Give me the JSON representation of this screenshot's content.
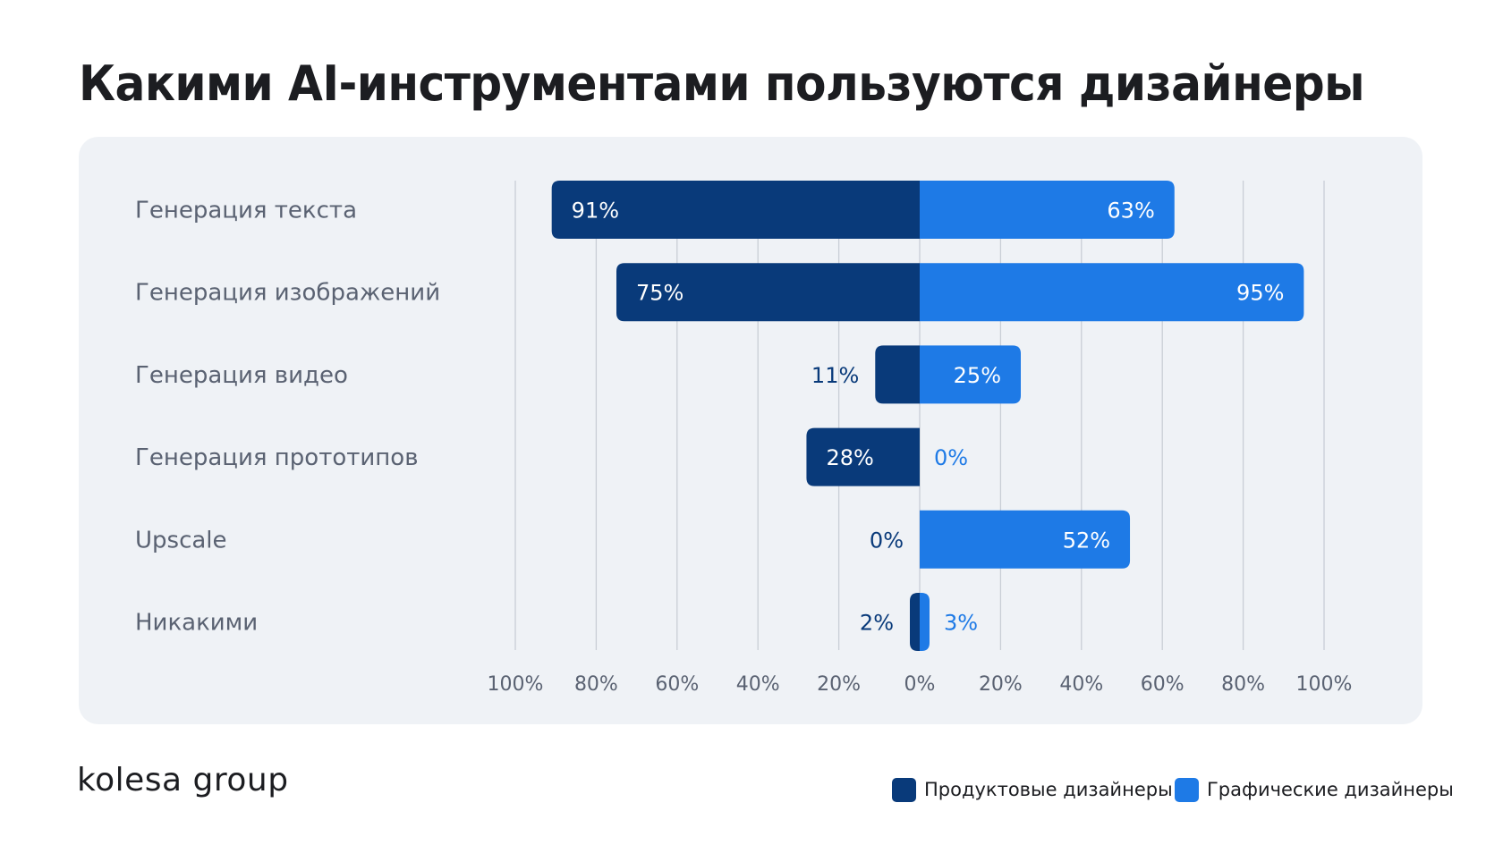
{
  "page": {
    "title": "Какими AI-инструментами пользуются дизайнеры",
    "logo_text": "kolesa group"
  },
  "colors": {
    "product": "#093a7a",
    "graphic": "#1e7ae6",
    "panel_bg": "#eff2f6",
    "category_label": "#5a6272",
    "tick_label": "#5a6272",
    "grid": "#c9ced6"
  },
  "chart_data": {
    "type": "bar",
    "orientation": "horizontal-diverging",
    "title": "Какими AI-инструментами пользуются дизайнеры",
    "categories": [
      "Генерация текста",
      "Генерация изображений",
      "Генерация видео",
      "Генерация прототипов",
      "Upscale",
      "Никакими"
    ],
    "series": [
      {
        "name": "Продуктовые дизайнеры",
        "direction": "left",
        "values": [
          91,
          75,
          11,
          28,
          0,
          2
        ],
        "labels": [
          "91%",
          "75%",
          "11%",
          "28%",
          "0%",
          "2%"
        ]
      },
      {
        "name": "Графические дизайнеры",
        "direction": "right",
        "values": [
          63,
          95,
          25,
          0,
          52,
          3
        ],
        "labels": [
          "63%",
          "95%",
          "25%",
          "0%",
          "52%",
          "3%"
        ]
      }
    ],
    "xlim": [
      -100,
      100
    ],
    "x_ticks": [
      -100,
      -80,
      -60,
      -40,
      -20,
      0,
      20,
      40,
      60,
      80,
      100
    ],
    "x_tick_labels": [
      "100%",
      "80%",
      "60%",
      "40%",
      "20%",
      "0%",
      "20%",
      "40%",
      "60%",
      "80%",
      "100%"
    ],
    "grid": true,
    "legend_position": "bottom-right"
  }
}
